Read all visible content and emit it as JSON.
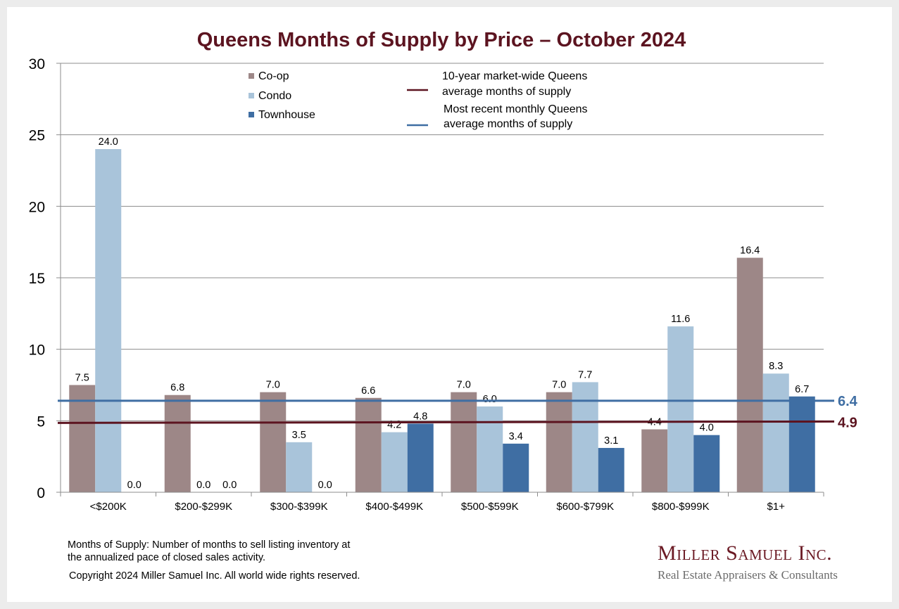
{
  "chart_data": {
    "type": "bar",
    "title": "Queens Months of Supply by Price – October 2024",
    "xlabel": "",
    "ylabel": "",
    "ylim": [
      0,
      30
    ],
    "yticks": [
      "0",
      "5",
      "10",
      "15",
      "20",
      "25",
      "30"
    ],
    "ytick_values": [
      0,
      5,
      10,
      15,
      20,
      25,
      30
    ],
    "grid": true,
    "legend_position": "top",
    "categories": [
      "<$200K",
      "$200-$299K",
      "$300-$399K",
      "$400-$499K",
      "$500-$599K",
      "$600-$799K",
      "$800-$999K",
      "$1+"
    ],
    "series": [
      {
        "name": "Co-op",
        "color": "#9d8787",
        "values": [
          7.5,
          6.8,
          7.0,
          6.6,
          7.0,
          7.0,
          4.4,
          16.4
        ],
        "labels": [
          "7.5",
          "6.8",
          "7.0",
          "6.6",
          "7.0",
          "7.0",
          "4.4",
          "16.4"
        ]
      },
      {
        "name": "Condo",
        "color": "#a9c4da",
        "values": [
          24.0,
          0.0,
          3.5,
          4.2,
          6.0,
          7.7,
          11.6,
          8.3
        ],
        "labels": [
          "24.0",
          "0.0",
          "3.5",
          "4.2",
          "6.0",
          "7.7",
          "11.6",
          "8.3"
        ]
      },
      {
        "name": "Townhouse",
        "color": "#3f6ea3",
        "values": [
          0.0,
          0.0,
          0.0,
          4.8,
          3.4,
          3.1,
          4.0,
          6.7
        ],
        "labels": [
          "0.0",
          "0.0",
          "0.0",
          "4.8",
          "3.4",
          "3.1",
          "4.0",
          "6.7"
        ]
      }
    ],
    "reference_lines": [
      {
        "name": "10-year market-wide Queens average months of supply",
        "legend_lines": [
          "10-year market-wide Queens",
          "average months of supply"
        ],
        "value": 4.9,
        "label": "4.9",
        "color": "#5c1420"
      },
      {
        "name": "Most recent monthly Queens average months of supply",
        "legend_lines": [
          "Most recent monthly Queens",
          "average months of supply"
        ],
        "value": 6.4,
        "label": "6.4",
        "color": "#3f6ea3"
      }
    ]
  },
  "footer": {
    "definition_line1": "Months of Supply: Number of months to sell listing inventory at",
    "definition_line2": "the annualized pace of closed sales activity.",
    "copyright": "Copyright 2024 Miller Samuel Inc.  All world wide rights reserved."
  },
  "logo": {
    "name": "Miller Samuel Inc.",
    "tagline": "Real Estate Appraisers & Consultants"
  }
}
